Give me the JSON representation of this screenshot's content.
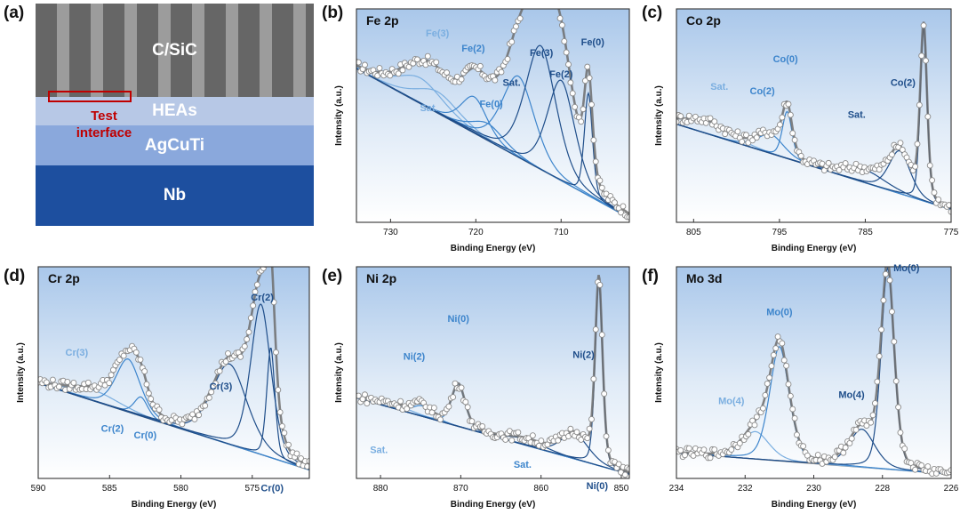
{
  "panels": {
    "a": {
      "letter": "(a)",
      "layers": [
        "C/SiC",
        "HEAs",
        "AgCuTi",
        "Nb"
      ],
      "test_label_line1": "Test",
      "test_label_line2": "interface",
      "colors": {
        "csic_dark": "#666666",
        "csic_light": "#9c9c9c",
        "heas": "#b7c8e6",
        "agcuti": "#8aa8dc",
        "nb": "#1d4f9f",
        "marker": "#c00000"
      }
    },
    "b": {
      "letter": "(b)"
    },
    "c": {
      "letter": "(c)"
    },
    "d": {
      "letter": "(d)"
    },
    "e": {
      "letter": "(e)"
    },
    "f": {
      "letter": "(f)"
    }
  },
  "colors": {
    "light": "#7aaee0",
    "mid": "#3d85cc",
    "dark": "#1f4e8a",
    "sum": "#6d6d6d",
    "background": "#888888",
    "frame": "#333333"
  },
  "chart_data": [
    {
      "id": "b",
      "type": "line",
      "title": "Fe 2p",
      "xlabel": "Binding Energy (eV)",
      "ylabel": "Intensity (a.u.)",
      "xlim": [
        734,
        702
      ],
      "xticks": [
        730,
        720,
        710
      ],
      "ylim": [
        0,
        100
      ],
      "background": [
        72,
        2
      ],
      "peaks": [
        {
          "center": 726.5,
          "height": 12,
          "width": 2.8,
          "tone": "light"
        },
        {
          "center": 724.5,
          "height": 10,
          "width": 2.6,
          "tone": "light"
        },
        {
          "center": 720.2,
          "height": 17,
          "width": 1.6,
          "tone": "mid"
        },
        {
          "center": 718.6,
          "height": 8,
          "width": 2.0,
          "tone": "mid"
        },
        {
          "center": 715.0,
          "height": 38,
          "width": 2.0,
          "tone": "mid"
        },
        {
          "center": 712.4,
          "height": 58,
          "width": 1.9,
          "tone": "dark"
        },
        {
          "center": 710.0,
          "height": 47,
          "width": 1.7,
          "tone": "dark"
        },
        {
          "center": 706.8,
          "height": 48,
          "width": 0.5,
          "tone": "dark"
        }
      ],
      "labels": [
        {
          "text": "Fe(3)",
          "x": 724.5,
          "y": 87,
          "tone": "light"
        },
        {
          "text": "Sat.",
          "x": 725.5,
          "y": 52,
          "tone": "light"
        },
        {
          "text": "Fe(2)",
          "x": 720.3,
          "y": 80,
          "tone": "mid"
        },
        {
          "text": "Fe(0)",
          "x": 718.2,
          "y": 54,
          "tone": "mid"
        },
        {
          "text": "Sat.",
          "x": 715.8,
          "y": 64,
          "tone": "dark"
        },
        {
          "text": "Fe(3)",
          "x": 712.3,
          "y": 78,
          "tone": "dark"
        },
        {
          "text": "Fe(2)",
          "x": 710.0,
          "y": 68,
          "tone": "dark"
        },
        {
          "text": "Fe(0)",
          "x": 706.3,
          "y": 83,
          "tone": "dark"
        }
      ]
    },
    {
      "id": "c",
      "type": "line",
      "title": "Co 2p",
      "xlabel": "Binding Energy (eV)",
      "ylabel": "Intensity (a.u.)",
      "xlim": [
        807,
        775
      ],
      "xticks": [
        805,
        795,
        785,
        775
      ],
      "ylim": [
        0,
        100
      ],
      "background": [
        46,
        6
      ],
      "peaks": [
        {
          "center": 803.5,
          "height": 6,
          "width": 2.8,
          "tone": "light"
        },
        {
          "center": 796.0,
          "height": 9,
          "width": 1.6,
          "tone": "mid"
        },
        {
          "center": 794.1,
          "height": 22,
          "width": 0.6,
          "tone": "mid"
        },
        {
          "center": 785.0,
          "height": 6,
          "width": 2.5,
          "tone": "dark"
        },
        {
          "center": 781.0,
          "height": 20,
          "width": 1.3,
          "tone": "dark"
        },
        {
          "center": 778.2,
          "height": 81,
          "width": 0.42,
          "tone": "dark"
        }
      ],
      "labels": [
        {
          "text": "Sat.",
          "x": 802.0,
          "y": 62,
          "tone": "light"
        },
        {
          "text": "Co(2)",
          "x": 797.0,
          "y": 60,
          "tone": "mid"
        },
        {
          "text": "Co(0)",
          "x": 794.3,
          "y": 75,
          "tone": "mid"
        },
        {
          "text": "Sat.",
          "x": 786.0,
          "y": 49,
          "tone": "dark"
        },
        {
          "text": "Co(2)",
          "x": 780.6,
          "y": 64,
          "tone": "dark"
        },
        {
          "text": "Co(0)",
          "x": 778.2,
          "y": 111,
          "tone": "dark"
        }
      ]
    },
    {
      "id": "d",
      "type": "line",
      "title": "Cr 2p",
      "xlabel": "Binding Energy (eV)",
      "ylabel": "Intensity (a.u.)",
      "xlim": [
        590,
        571
      ],
      "xticks": [
        590,
        585,
        580,
        575
      ],
      "ylim": [
        0,
        100
      ],
      "background": [
        45,
        4
      ],
      "peaks": [
        {
          "center": 586.0,
          "height": 5,
          "width": 1.8,
          "tone": "light"
        },
        {
          "center": 583.7,
          "height": 25,
          "width": 0.9,
          "tone": "mid"
        },
        {
          "center": 582.8,
          "height": 9,
          "width": 0.5,
          "tone": "mid"
        },
        {
          "center": 576.6,
          "height": 38,
          "width": 1.3,
          "tone": "dark"
        },
        {
          "center": 574.4,
          "height": 71,
          "width": 0.75,
          "tone": "dark"
        },
        {
          "center": 573.7,
          "height": 52,
          "width": 0.3,
          "tone": "dark"
        }
      ],
      "labels": [
        {
          "text": "Cr(3)",
          "x": 587.3,
          "y": 58,
          "tone": "light"
        },
        {
          "text": "Cr(2)",
          "x": 584.8,
          "y": 22,
          "tone": "mid"
        },
        {
          "text": "Cr(0)",
          "x": 582.5,
          "y": 19,
          "tone": "mid"
        },
        {
          "text": "Cr(3)",
          "x": 577.2,
          "y": 42,
          "tone": "dark"
        },
        {
          "text": "Cr(2)",
          "x": 574.3,
          "y": 84,
          "tone": "dark"
        },
        {
          "text": "Cr(0)",
          "x": 573.6,
          "y": -6,
          "tone": "dark"
        }
      ]
    },
    {
      "id": "e",
      "type": "line",
      "title": "Ni 2p",
      "xlabel": "Binding Energy (eV)",
      "ylabel": "Intensity (a.u.)",
      "xlim": [
        883,
        849
      ],
      "xticks": [
        880,
        870,
        860,
        850
      ],
      "ylim": [
        0,
        100
      ],
      "background": [
        38,
        2
      ],
      "peaks": [
        {
          "center": 878.5,
          "height": 2,
          "width": 2.5,
          "tone": "light"
        },
        {
          "center": 874.8,
          "height": 5,
          "width": 1.3,
          "tone": "mid"
        },
        {
          "center": 870.3,
          "height": 20,
          "width": 0.9,
          "tone": "mid"
        },
        {
          "center": 862.0,
          "height": 3,
          "width": 2.5,
          "tone": "dark"
        },
        {
          "center": 855.8,
          "height": 12,
          "width": 1.8,
          "tone": "dark"
        },
        {
          "center": 852.8,
          "height": 87,
          "width": 0.48,
          "tone": "dark"
        }
      ],
      "labels": [
        {
          "text": "Ni(2)",
          "x": 875.8,
          "y": 56,
          "tone": "mid"
        },
        {
          "text": "Ni(0)",
          "x": 870.3,
          "y": 74,
          "tone": "mid"
        },
        {
          "text": "Sat.",
          "x": 880.2,
          "y": 12,
          "tone": "light"
        },
        {
          "text": "Sat.",
          "x": 862.3,
          "y": 5,
          "tone": "mid"
        },
        {
          "text": "Ni(2)",
          "x": 854.7,
          "y": 57,
          "tone": "dark"
        },
        {
          "text": "Ni(0)",
          "x": 853.0,
          "y": -5,
          "tone": "dark"
        }
      ]
    },
    {
      "id": "f",
      "type": "line",
      "title": "Mo 3d",
      "xlabel": "Binding Energy (eV)",
      "ylabel": "Intensity (a.u.)",
      "xlim": [
        234,
        226
      ],
      "xticks": [
        234,
        232,
        230,
        228,
        226
      ],
      "ylim": [
        0,
        100
      ],
      "background": [
        12,
        2
      ],
      "peaks": [
        {
          "center": 231.7,
          "height": 13,
          "width": 0.42,
          "tone": "light"
        },
        {
          "center": 231.0,
          "height": 54,
          "width": 0.3,
          "tone": "mid"
        },
        {
          "center": 228.6,
          "height": 18,
          "width": 0.4,
          "tone": "dark"
        },
        {
          "center": 227.85,
          "height": 95,
          "width": 0.2,
          "tone": "dark"
        }
      ],
      "labels": [
        {
          "text": "Mo(4)",
          "x": 232.4,
          "y": 35,
          "tone": "light"
        },
        {
          "text": "Mo(0)",
          "x": 231.0,
          "y": 77,
          "tone": "mid"
        },
        {
          "text": "Mo(4)",
          "x": 228.9,
          "y": 38,
          "tone": "dark"
        },
        {
          "text": "Mo(0)",
          "x": 227.3,
          "y": 98,
          "tone": "dark"
        }
      ]
    }
  ]
}
